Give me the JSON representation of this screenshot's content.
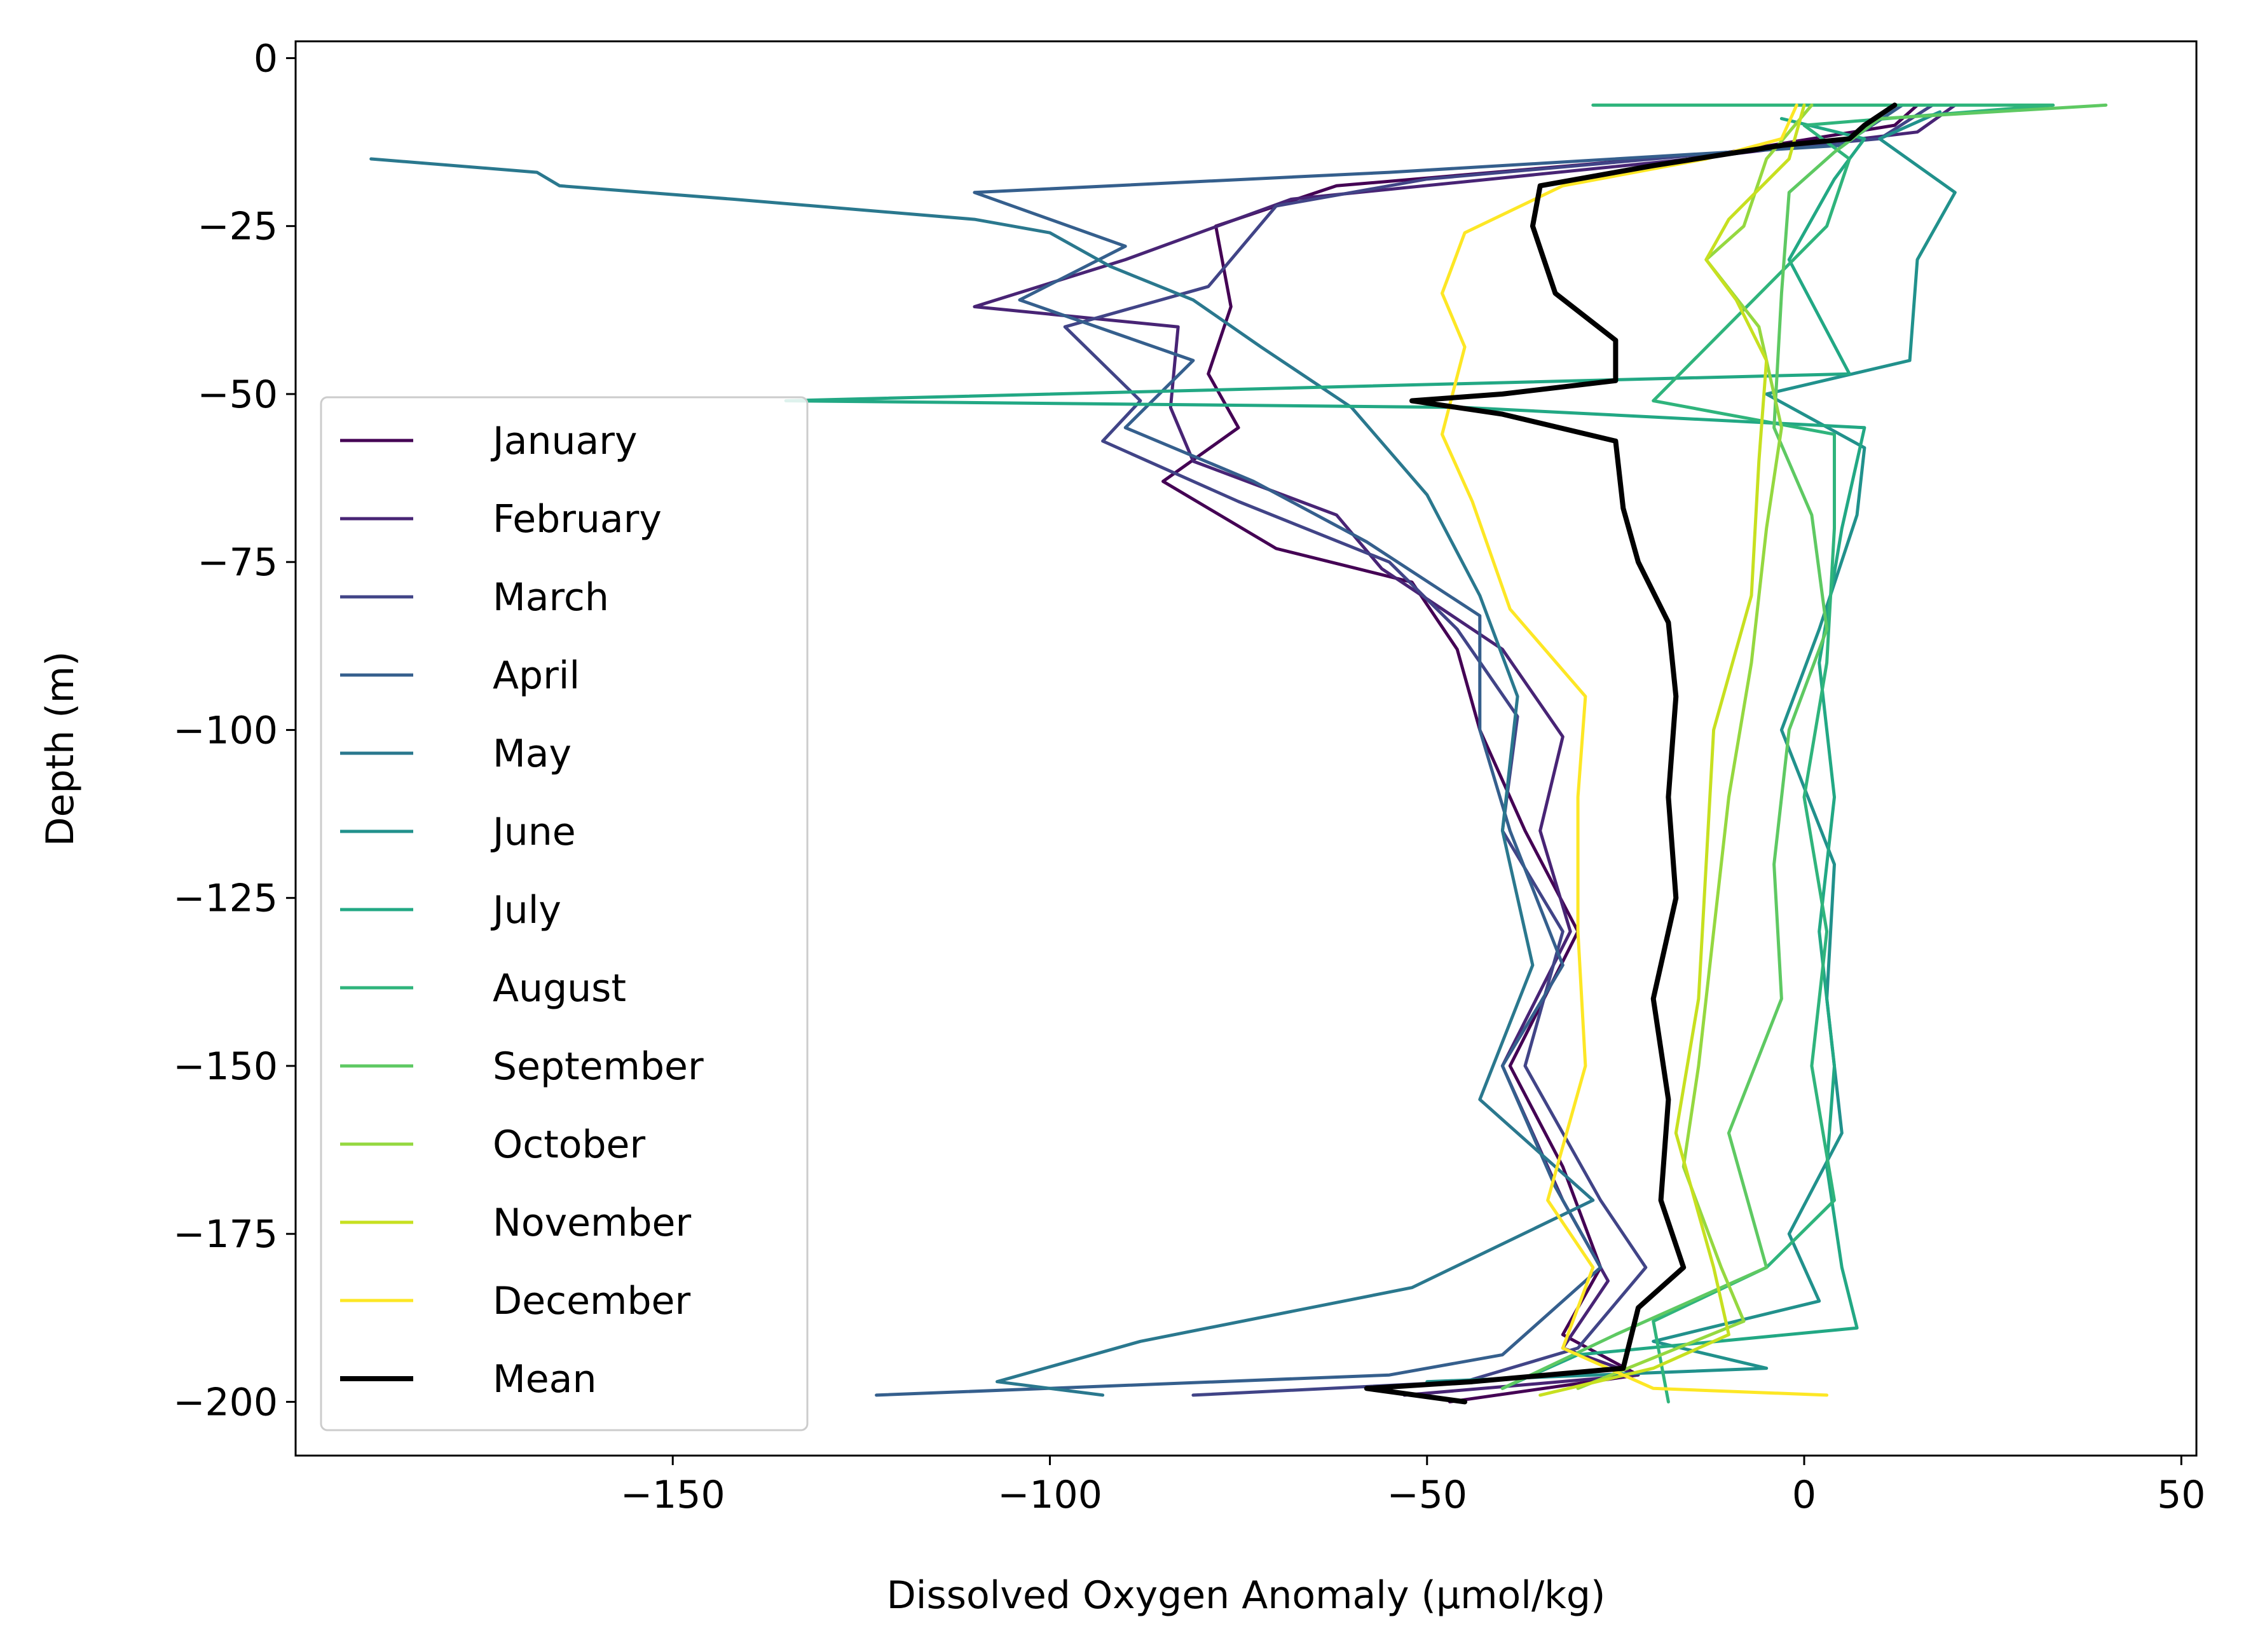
{
  "chart_data": {
    "type": "line",
    "title": "",
    "xlabel": "Dissolved Oxygen Anomaly (µmol/kg)",
    "ylabel": "Depth (m)",
    "xlim": [
      -200,
      52
    ],
    "ylim": [
      -208,
      2.5
    ],
    "x_ticks": [
      -150,
      -100,
      -50,
      0,
      50
    ],
    "y_ticks": [
      0,
      -25,
      -50,
      -75,
      -100,
      -125,
      -150,
      -175,
      -200
    ],
    "x_tick_labels": [
      "−150",
      "−100",
      "−50",
      "0",
      "50"
    ],
    "y_tick_labels": [
      "0",
      "−25",
      "−50",
      "−75",
      "−100",
      "−125",
      "−150",
      "−175",
      "−200"
    ],
    "grid": false,
    "legend_position": "center-left",
    "series": [
      {
        "name": "January",
        "color": "#440154",
        "points": [
          [
            15,
            -7
          ],
          [
            12,
            -10
          ],
          [
            -10,
            -14
          ],
          [
            -62,
            -19
          ],
          [
            -78,
            -25
          ],
          [
            -76,
            -37
          ],
          [
            -79,
            -47
          ],
          [
            -75,
            -55
          ],
          [
            -85,
            -63
          ],
          [
            -70,
            -73
          ],
          [
            -52,
            -78
          ],
          [
            -46,
            -88
          ],
          [
            -43,
            -100
          ],
          [
            -37,
            -115
          ],
          [
            -30,
            -130
          ],
          [
            -39,
            -150
          ],
          [
            -32,
            -165
          ],
          [
            -27,
            -180
          ],
          [
            -32,
            -190
          ],
          [
            -22,
            -196
          ],
          [
            -47,
            -200
          ]
        ]
      },
      {
        "name": "February",
        "color": "#482475",
        "points": [
          [
            20,
            -7
          ],
          [
            15,
            -11
          ],
          [
            -15,
            -15
          ],
          [
            -68,
            -21
          ],
          [
            -90,
            -30
          ],
          [
            -110,
            -37
          ],
          [
            -83,
            -40
          ],
          [
            -84,
            -52
          ],
          [
            -81,
            -60
          ],
          [
            -62,
            -68
          ],
          [
            -56,
            -76
          ],
          [
            -40,
            -88
          ],
          [
            -32,
            -101
          ],
          [
            -35,
            -115
          ],
          [
            -31,
            -130
          ],
          [
            -40,
            -150
          ],
          [
            -32,
            -170
          ],
          [
            -26,
            -182
          ],
          [
            -32,
            -192
          ],
          [
            -22,
            -196
          ],
          [
            -53,
            -199
          ]
        ]
      },
      {
        "name": "March",
        "color": "#414487",
        "points": [
          [
            17,
            -7
          ],
          [
            10,
            -12
          ],
          [
            -50,
            -18
          ],
          [
            -70,
            -22
          ],
          [
            -79,
            -34
          ],
          [
            -98,
            -40
          ],
          [
            -88,
            -51
          ],
          [
            -93,
            -57
          ],
          [
            -75,
            -66
          ],
          [
            -55,
            -75
          ],
          [
            -46,
            -85
          ],
          [
            -38,
            -98
          ],
          [
            -40,
            -115
          ],
          [
            -32,
            -130
          ],
          [
            -37,
            -150
          ],
          [
            -27,
            -170
          ],
          [
            -21,
            -180
          ],
          [
            -30,
            -192
          ],
          [
            -45,
            -197
          ],
          [
            -81,
            -199
          ]
        ]
      },
      {
        "name": "April",
        "color": "#355f8d",
        "points": [
          [
            13,
            -7
          ],
          [
            5,
            -13
          ],
          [
            -55,
            -17
          ],
          [
            -110,
            -20
          ],
          [
            -90,
            -28
          ],
          [
            -104,
            -36
          ],
          [
            -81,
            -45
          ],
          [
            -90,
            -55
          ],
          [
            -73,
            -63
          ],
          [
            -58,
            -72
          ],
          [
            -43,
            -83
          ],
          [
            -43,
            -100
          ],
          [
            -39,
            -115
          ],
          [
            -32,
            -135
          ],
          [
            -40,
            -150
          ],
          [
            -33,
            -168
          ],
          [
            -27,
            -180
          ],
          [
            -40,
            -193
          ],
          [
            -55,
            -196
          ],
          [
            -123,
            -199
          ]
        ]
      },
      {
        "name": "May",
        "color": "#2a788e",
        "points": [
          [
            -190,
            -15
          ],
          [
            -168,
            -17
          ],
          [
            -165,
            -19
          ],
          [
            -142,
            -21
          ],
          [
            -110,
            -24
          ],
          [
            -100,
            -26
          ],
          [
            -92,
            -31
          ],
          [
            -81,
            -36
          ],
          [
            -72,
            -43
          ],
          [
            -60,
            -52
          ],
          [
            -50,
            -65
          ],
          [
            -43,
            -80
          ],
          [
            -38,
            -95
          ],
          [
            -40,
            -115
          ],
          [
            -36,
            -135
          ],
          [
            -43,
            -155
          ],
          [
            -28,
            -170
          ],
          [
            -52,
            -183
          ],
          [
            -88,
            -191
          ],
          [
            -107,
            -197
          ],
          [
            -93,
            -199
          ]
        ]
      },
      {
        "name": "June",
        "color": "#21918c",
        "points": [
          [
            18,
            -8
          ],
          [
            10,
            -12
          ],
          [
            20,
            -20
          ],
          [
            15,
            -30
          ],
          [
            14,
            -45
          ],
          [
            -5,
            -50
          ],
          [
            8,
            -58
          ],
          [
            7,
            -68
          ],
          [
            2,
            -85
          ],
          [
            -3,
            -100
          ],
          [
            4,
            -120
          ],
          [
            3,
            -140
          ],
          [
            5,
            -160
          ],
          [
            -2,
            -175
          ],
          [
            2,
            -185
          ],
          [
            -20,
            -191
          ],
          [
            -5,
            -195
          ],
          [
            -50,
            -197
          ]
        ]
      },
      {
        "name": "July",
        "color": "#22a884",
        "points": [
          [
            -3,
            -9
          ],
          [
            8,
            -12
          ],
          [
            4,
            -18
          ],
          [
            -2,
            -30
          ],
          [
            6,
            -47
          ],
          [
            -135,
            -51
          ],
          [
            -45,
            -52
          ],
          [
            8,
            -55
          ],
          [
            5,
            -70
          ],
          [
            2,
            -90
          ],
          [
            4,
            -110
          ],
          [
            2,
            -130
          ],
          [
            4,
            -150
          ],
          [
            3,
            -165
          ],
          [
            5,
            -180
          ],
          [
            7,
            -189
          ],
          [
            -30,
            -193
          ],
          [
            -40,
            -198
          ]
        ]
      },
      {
        "name": "August",
        "color": "#2fb47c",
        "points": [
          [
            -28,
            -7
          ],
          [
            33,
            -7
          ],
          [
            0,
            -10
          ],
          [
            6,
            -15
          ],
          [
            3,
            -25
          ],
          [
            -20,
            -51
          ],
          [
            4,
            -56
          ],
          [
            4,
            -70
          ],
          [
            3,
            -90
          ],
          [
            0,
            -110
          ],
          [
            3,
            -130
          ],
          [
            1,
            -150
          ],
          [
            4,
            -170
          ],
          [
            -5,
            -180
          ],
          [
            -20,
            -188
          ],
          [
            -18,
            -200
          ]
        ]
      },
      {
        "name": "September",
        "color": "#5ec962",
        "points": [
          [
            40,
            -7
          ],
          [
            10,
            -9
          ],
          [
            4,
            -14
          ],
          [
            -2,
            -20
          ],
          [
            -3,
            -35
          ],
          [
            -4,
            -55
          ],
          [
            1,
            -68
          ],
          [
            3,
            -85
          ],
          [
            -2,
            -100
          ],
          [
            -4,
            -120
          ],
          [
            -3,
            -140
          ],
          [
            -10,
            -160
          ],
          [
            -5,
            -180
          ],
          [
            -25,
            -190
          ],
          [
            -40,
            -198
          ]
        ]
      },
      {
        "name": "October",
        "color": "#95d840",
        "points": [
          [
            1,
            -7
          ],
          [
            -5,
            -15
          ],
          [
            -8,
            -25
          ],
          [
            -13,
            -30
          ],
          [
            -6,
            -40
          ],
          [
            -3,
            -55
          ],
          [
            -5,
            -70
          ],
          [
            -7,
            -90
          ],
          [
            -10,
            -110
          ],
          [
            -12,
            -130
          ],
          [
            -14,
            -150
          ],
          [
            -16,
            -165
          ],
          [
            -11,
            -180
          ],
          [
            -8,
            -188
          ],
          [
            -30,
            -198
          ]
        ]
      },
      {
        "name": "November",
        "color": "#c7e020",
        "points": [
          [
            0,
            -7
          ],
          [
            -2,
            -15
          ],
          [
            -10,
            -24
          ],
          [
            -13,
            -30
          ],
          [
            -9,
            -36
          ],
          [
            -5,
            -45
          ],
          [
            -6,
            -60
          ],
          [
            -7,
            -80
          ],
          [
            -12,
            -100
          ],
          [
            -13,
            -120
          ],
          [
            -14,
            -140
          ],
          [
            -17,
            -160
          ],
          [
            -12,
            -180
          ],
          [
            -10,
            -190
          ],
          [
            -20,
            -195
          ],
          [
            -35,
            -199
          ]
        ]
      },
      {
        "name": "December",
        "color": "#fde725",
        "points": [
          [
            -1,
            -7
          ],
          [
            -3,
            -12
          ],
          [
            -13,
            -15
          ],
          [
            -32,
            -19
          ],
          [
            -45,
            -26
          ],
          [
            -48,
            -35
          ],
          [
            -45,
            -43
          ],
          [
            -48,
            -56
          ],
          [
            -44,
            -66
          ],
          [
            -39,
            -82
          ],
          [
            -29,
            -95
          ],
          [
            -30,
            -110
          ],
          [
            -30,
            -130
          ],
          [
            -29,
            -150
          ],
          [
            -34,
            -170
          ],
          [
            -28,
            -180
          ],
          [
            -32,
            -192
          ],
          [
            -20,
            -198
          ],
          [
            3,
            -199
          ]
        ]
      },
      {
        "name": "Mean",
        "color": "#000000",
        "width": 3,
        "points": [
          [
            12,
            -7
          ],
          [
            8,
            -10
          ],
          [
            6,
            -12
          ],
          [
            -3,
            -13
          ],
          [
            -20,
            -16
          ],
          [
            -25,
            -17
          ],
          [
            -35,
            -19
          ],
          [
            -36,
            -25
          ],
          [
            -33,
            -35
          ],
          [
            -25,
            -42
          ],
          [
            -25,
            -48
          ],
          [
            -40,
            -50
          ],
          [
            -52,
            -51
          ],
          [
            -40,
            -53
          ],
          [
            -25,
            -57
          ],
          [
            -24,
            -67
          ],
          [
            -22,
            -75
          ],
          [
            -18,
            -84
          ],
          [
            -17,
            -95
          ],
          [
            -18,
            -110
          ],
          [
            -17,
            -125
          ],
          [
            -20,
            -140
          ],
          [
            -18,
            -155
          ],
          [
            -19,
            -170
          ],
          [
            -16,
            -180
          ],
          [
            -22,
            -186
          ],
          [
            -24,
            -195
          ],
          [
            -44,
            -197
          ],
          [
            -58,
            -198
          ],
          [
            -45,
            -200
          ]
        ]
      }
    ]
  }
}
